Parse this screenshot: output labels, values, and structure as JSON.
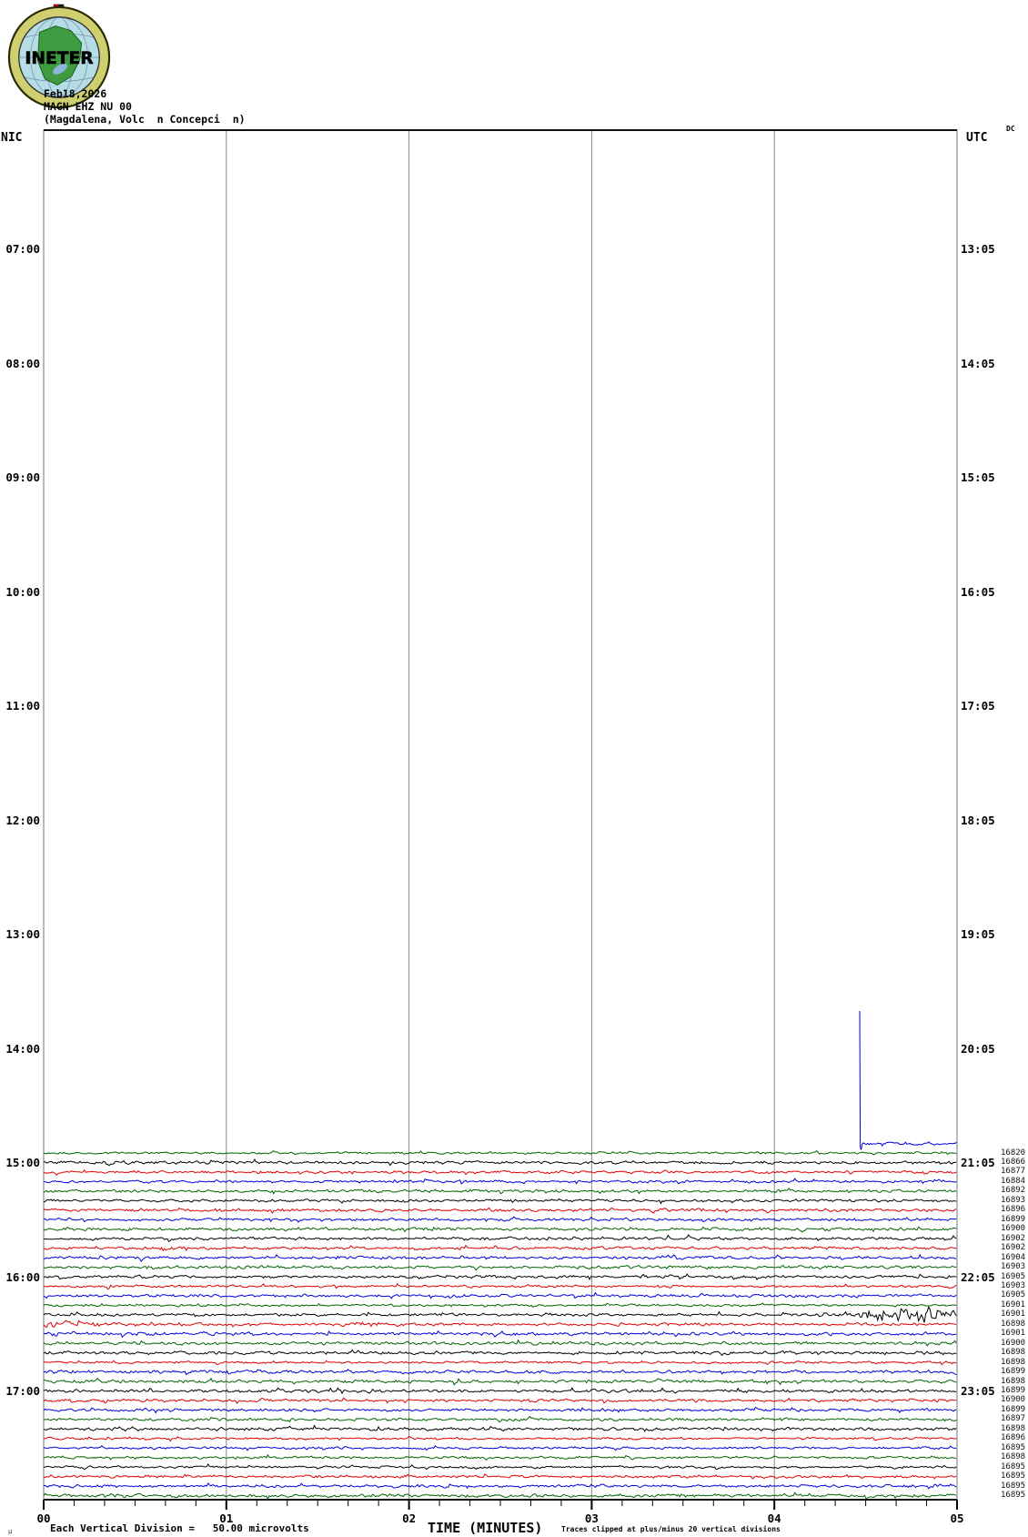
{
  "header": {
    "logo_text": "INETER",
    "date": "Feb18,2026",
    "station": "MAGN EHZ NU 00",
    "location": "(Magdalena, Volc  n Concepci  n)",
    "left_tz": "NIC",
    "right_tz": "UTC",
    "right_tz_super": "DC"
  },
  "footer": {
    "micro_glyph": "µ",
    "scale_note": "Each Vertical Division =   50.00 microvolts",
    "xlabel": "TIME (MINUTES)",
    "clip_note": "Traces clipped at plus/minus 20 vertical divisions"
  },
  "chart_data": {
    "type": "line",
    "subtype": "helicorder-seismogram",
    "title": "MAGN EHZ NU 00",
    "date": "Feb18,2026",
    "location": "(Magdalena, Volc  n Concepci  n)",
    "xlabel": "TIME (MINUTES)",
    "x_ticks": [
      "00",
      "01",
      "02",
      "03",
      "04",
      "05"
    ],
    "x_range_minutes": [
      0,
      5
    ],
    "minutes_per_row": 5,
    "rows_per_hour": 12,
    "grid": "vertical-minute-lines",
    "left_timezone": "NIC",
    "right_timezone": "UTC",
    "left_time_labels": [
      "07:00",
      "08:00",
      "09:00",
      "10:00",
      "11:00",
      "12:00",
      "13:00",
      "14:00",
      "15:00",
      "16:00",
      "17:00"
    ],
    "right_time_labels": [
      "13:05",
      "14:05",
      "15:05",
      "16:05",
      "17:05",
      "18:05",
      "19:05",
      "20:05",
      "21:05",
      "22:05",
      "23:05"
    ],
    "trace_color_cycle": [
      "black",
      "red",
      "blue",
      "green"
    ],
    "colors": {
      "black": "#000000",
      "red": "#e00000",
      "blue": "#0000dd",
      "green": "#006400"
    },
    "scale_note": "Each Vertical Division =   50.00 microvolts",
    "clip_note": "Traces clipped at plus/minus 20 vertical divisions",
    "dc_column_header": "DC",
    "rows": [
      {
        "color": "blue",
        "dc": null,
        "feature": "startup"
      },
      {
        "color": "green",
        "dc": 16820,
        "feature": null
      },
      {
        "color": "black",
        "dc": 16866,
        "feature": null
      },
      {
        "color": "red",
        "dc": 16877,
        "feature": null
      },
      {
        "color": "blue",
        "dc": 16884,
        "feature": null
      },
      {
        "color": "green",
        "dc": 16892,
        "feature": null
      },
      {
        "color": "black",
        "dc": 16893,
        "feature": null
      },
      {
        "color": "red",
        "dc": 16896,
        "feature": null
      },
      {
        "color": "blue",
        "dc": 16899,
        "feature": null
      },
      {
        "color": "green",
        "dc": 16900,
        "feature": null
      },
      {
        "color": "black",
        "dc": 16902,
        "feature": null
      },
      {
        "color": "red",
        "dc": 16902,
        "feature": null
      },
      {
        "color": "blue",
        "dc": 16904,
        "feature": null
      },
      {
        "color": "green",
        "dc": 16903,
        "feature": null
      },
      {
        "color": "black",
        "dc": 16905,
        "feature": null
      },
      {
        "color": "red",
        "dc": 16903,
        "feature": null
      },
      {
        "color": "blue",
        "dc": 16905,
        "feature": null
      },
      {
        "color": "green",
        "dc": 16901,
        "feature": null
      },
      {
        "color": "black",
        "dc": 16901,
        "feature": "burst_end"
      },
      {
        "color": "red",
        "dc": 16898,
        "feature": "burst_start"
      },
      {
        "color": "blue",
        "dc": 16901,
        "feature": "mild_start"
      },
      {
        "color": "green",
        "dc": 16900,
        "feature": null
      },
      {
        "color": "black",
        "dc": 16898,
        "feature": null
      },
      {
        "color": "red",
        "dc": 16898,
        "feature": null
      },
      {
        "color": "blue",
        "dc": 16899,
        "feature": null
      },
      {
        "color": "green",
        "dc": 16898,
        "feature": null
      },
      {
        "color": "black",
        "dc": 16899,
        "feature": null
      },
      {
        "color": "red",
        "dc": 16900,
        "feature": null
      },
      {
        "color": "blue",
        "dc": 16899,
        "feature": null
      },
      {
        "color": "green",
        "dc": 16897,
        "feature": null
      },
      {
        "color": "black",
        "dc": 16898,
        "feature": null
      },
      {
        "color": "red",
        "dc": 16896,
        "feature": null
      },
      {
        "color": "blue",
        "dc": 16895,
        "feature": null
      },
      {
        "color": "green",
        "dc": 16898,
        "feature": null
      },
      {
        "color": "black",
        "dc": 16895,
        "feature": null
      },
      {
        "color": "red",
        "dc": 16895,
        "feature": null
      },
      {
        "color": "blue",
        "dc": 16895,
        "feature": null
      },
      {
        "color": "green",
        "dc": 16895,
        "feature": null
      }
    ],
    "events": [
      {
        "description": "clipped startup spike at recording onset",
        "row": 1,
        "minute": 4.47
      },
      {
        "description": "seismic event burst at end of row",
        "row": 19,
        "minute_range": [
          4.15,
          5.0
        ]
      },
      {
        "description": "event coda at start of next row",
        "row": 20,
        "minute_range": [
          0.0,
          0.3
        ]
      }
    ]
  }
}
